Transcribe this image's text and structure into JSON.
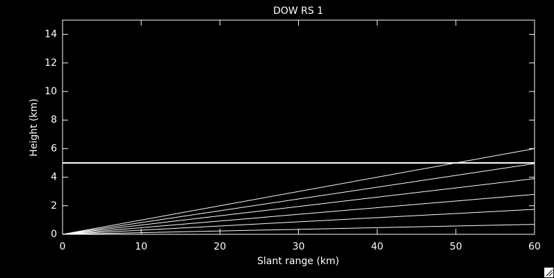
{
  "chart_data": {
    "type": "line",
    "title": "DOW RS 1",
    "x_label": "Slant range (km)",
    "y_label": "Height (km)",
    "x": [
      0,
      60
    ],
    "series": [
      {
        "color": "#ffffff",
        "values": [
          0,
          0.7
        ]
      },
      {
        "color": "#ffffff",
        "values": [
          0,
          1.75
        ]
      },
      {
        "color": "#ffffff",
        "values": [
          0,
          2.8
        ]
      },
      {
        "color": "#ffffff",
        "values": [
          0,
          3.9
        ]
      },
      {
        "color": "#ffffff",
        "values": [
          0,
          4.95
        ]
      },
      {
        "color": "#ffffff",
        "values": [
          0,
          6.0
        ]
      },
      {
        "color": "#ffffff",
        "values": [
          5,
          5
        ],
        "line_width": 2
      }
    ],
    "xlim": [
      0,
      60
    ],
    "xticks": [
      0,
      10,
      20,
      30,
      40,
      50,
      60
    ],
    "ylim": [
      0,
      15
    ],
    "yticks": [
      0,
      2,
      4,
      6,
      8,
      10,
      12,
      14
    ],
    "axis_color": "#ffffff",
    "background": "#000000"
  }
}
